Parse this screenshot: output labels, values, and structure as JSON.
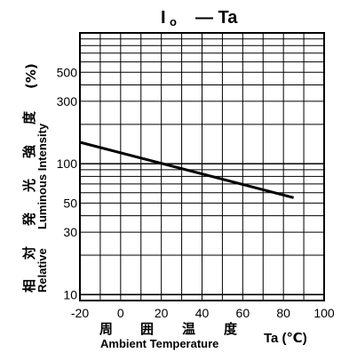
{
  "chart_data": {
    "type": "line",
    "title": {
      "main": "I",
      "sub": "o",
      "rest": "— Ta"
    },
    "xlabel": {
      "jp": [
        "周",
        "囲",
        "温",
        "度"
      ],
      "en": "Ambient Temperature",
      "unit": "Ta (℃)"
    },
    "ylabel": {
      "jp": [
        "相",
        "対",
        "発",
        "光",
        "強",
        "度"
      ],
      "en_line1": "Relative",
      "en_line2": "Luminous Intensity",
      "unit": "(%)"
    },
    "xlim": [
      -20,
      100
    ],
    "ylim": [
      9,
      1000
    ],
    "yscale": "log",
    "grid": true,
    "x_ticks": [
      {
        "value": -20,
        "label": "-20"
      },
      {
        "value": 0,
        "label": "0"
      },
      {
        "value": 20,
        "label": "20"
      },
      {
        "value": 40,
        "label": "40"
      },
      {
        "value": 60,
        "label": "60"
      },
      {
        "value": 80,
        "label": "80"
      },
      {
        "value": 100,
        "label": "100"
      }
    ],
    "y_ticks": [
      {
        "value": 10,
        "label": "10"
      },
      {
        "value": 30,
        "label": "30"
      },
      {
        "value": 50,
        "label": "50"
      },
      {
        "value": 100,
        "label": "100"
      },
      {
        "value": 300,
        "label": "300"
      },
      {
        "value": 500,
        "label": "500"
      }
    ],
    "series": [
      {
        "x": [
          -20,
          85
        ],
        "y": [
          146,
          55
        ]
      }
    ],
    "colors": {
      "line": "#000000",
      "grid": "#000000",
      "background": "#ffffff"
    }
  }
}
